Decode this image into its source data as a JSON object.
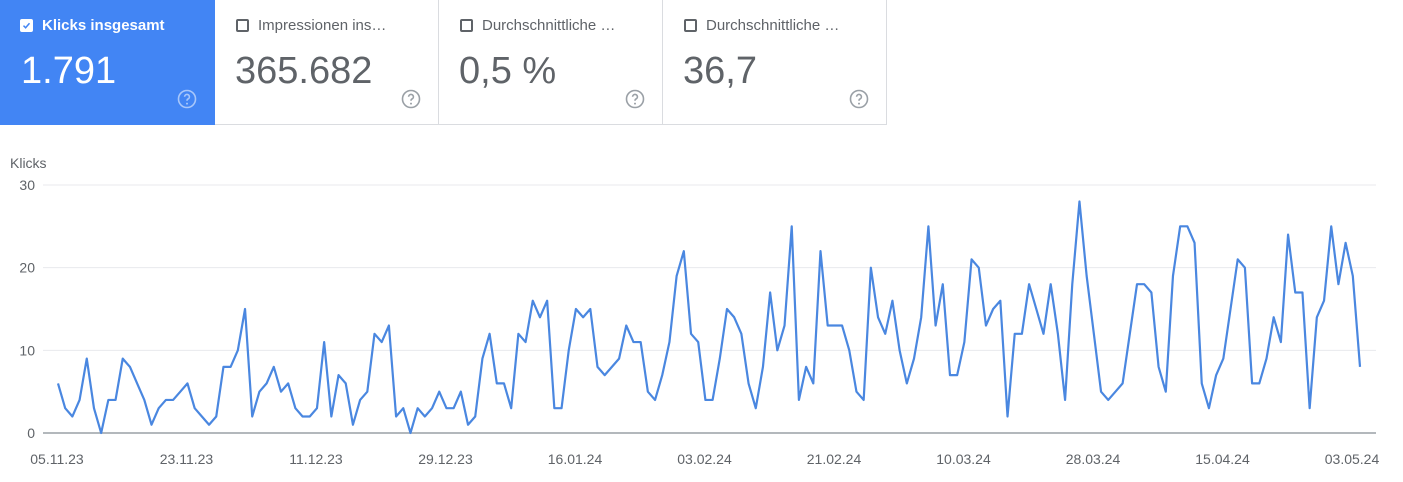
{
  "cards": [
    {
      "label": "Klicks insgesamt",
      "value": "1.791",
      "checked": true
    },
    {
      "label": "Impressionen ins…",
      "value": "365.682",
      "checked": false
    },
    {
      "label": "Durchschnittliche …",
      "value": "0,5 %",
      "checked": false
    },
    {
      "label": "Durchschnittliche …",
      "value": "36,7",
      "checked": false
    }
  ],
  "colors": {
    "accent": "#4285f4",
    "line": "#4a87e0",
    "grid": "#e8eaed",
    "axis": "#9aa0a6"
  },
  "chart_data": {
    "type": "line",
    "ylabel": "Klicks",
    "ylim": [
      0,
      30
    ],
    "yticks": [
      0,
      10,
      20,
      30
    ],
    "xticks": [
      "05.11.23",
      "23.11.23",
      "11.12.23",
      "29.12.23",
      "16.01.24",
      "03.02.24",
      "21.02.24",
      "10.03.24",
      "28.03.24",
      "15.04.24",
      "03.05.24"
    ],
    "grid": true,
    "series": [
      {
        "values": [
          6,
          3,
          2,
          4,
          9,
          3,
          0,
          4,
          4,
          9,
          8,
          6,
          4,
          1,
          3,
          4,
          4,
          5,
          6,
          3,
          2,
          1,
          2,
          8,
          8,
          10,
          15,
          2,
          5,
          6,
          8,
          5,
          6,
          3,
          2,
          2,
          3,
          11,
          2,
          7,
          6,
          1,
          4,
          5,
          12,
          11,
          13,
          2,
          3,
          0,
          3,
          2,
          3,
          5,
          3,
          3,
          5,
          1,
          2,
          9,
          12,
          6,
          6,
          3,
          12,
          11,
          16,
          14,
          16,
          3,
          3,
          10,
          15,
          14,
          15,
          8,
          7,
          8,
          9,
          13,
          11,
          11,
          5,
          4,
          7,
          11,
          19,
          22,
          12,
          11,
          4,
          4,
          9,
          15,
          14,
          12,
          6,
          3,
          8,
          17,
          10,
          13,
          25,
          4,
          8,
          6,
          22,
          13,
          13,
          13,
          10,
          5,
          4,
          20,
          14,
          12,
          16,
          10,
          6,
          9,
          14,
          25,
          13,
          18,
          7,
          7,
          11,
          21,
          20,
          13,
          15,
          16,
          2,
          12,
          12,
          18,
          15,
          12,
          18,
          12,
          4,
          18,
          28,
          19,
          12,
          5,
          4,
          5,
          6,
          12,
          18,
          18,
          17,
          8,
          5,
          19,
          25,
          25,
          23,
          6,
          3,
          7,
          9,
          15,
          21,
          20,
          6,
          6,
          9,
          14,
          11,
          24,
          17,
          17,
          3,
          14,
          16,
          25,
          18,
          23,
          19,
          8
        ]
      }
    ]
  }
}
